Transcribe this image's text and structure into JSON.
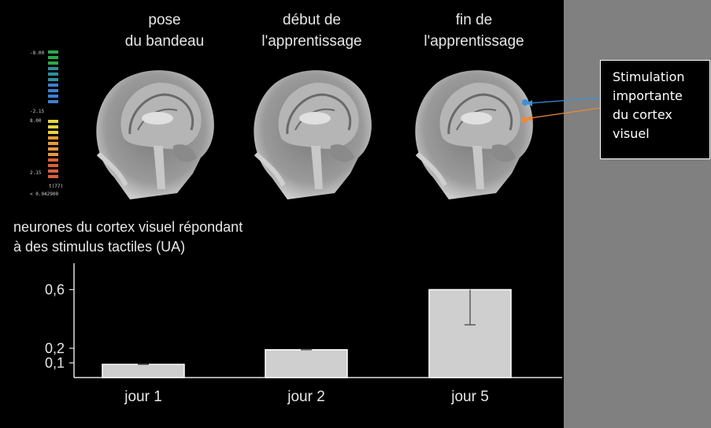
{
  "panels": [
    {
      "title_line1": "pose",
      "title_line2": "du bandeau"
    },
    {
      "title_line1": "début de",
      "title_line2": "l'apprentissage"
    },
    {
      "title_line1": "fin de",
      "title_line2": "l'apprentissage"
    }
  ],
  "color_scale": {
    "labels": [
      "-8.00",
      "-2.15",
      "8.00",
      "2.15",
      "t(77)",
      "< 0.042900"
    ],
    "colors": [
      "#2fa84a",
      "#2f8f9a",
      "#3f7fcf",
      "#e8d63a",
      "#e89a3a",
      "#d8603a"
    ]
  },
  "callout": {
    "text": "Stimulation importante du cortex visuel",
    "line1": "Stimulation",
    "line2": "importante",
    "line3": "du cortex",
    "line4": "visuel",
    "arrow_colors": [
      "#3f8fd8",
      "#e88a3a"
    ]
  },
  "chart_data": {
    "type": "bar",
    "title_line1": "neurones du cortex visuel répondant",
    "title_line2": "à des stimulus tactiles (UA)",
    "categories": [
      "jour 1",
      "jour 2",
      "jour 5"
    ],
    "values": [
      0.09,
      0.19,
      0.6
    ],
    "error_low": [
      0.09,
      0.19,
      0.36
    ],
    "error_high": [
      0.09,
      0.19,
      0.6
    ],
    "yticks": [
      "0,1",
      "0,2",
      "0,6"
    ],
    "ytick_values": [
      0.1,
      0.2,
      0.6
    ],
    "ylim": [
      0,
      0.78
    ],
    "bar_color": "#cfcfcf",
    "xlabel": "",
    "ylabel": ""
  }
}
